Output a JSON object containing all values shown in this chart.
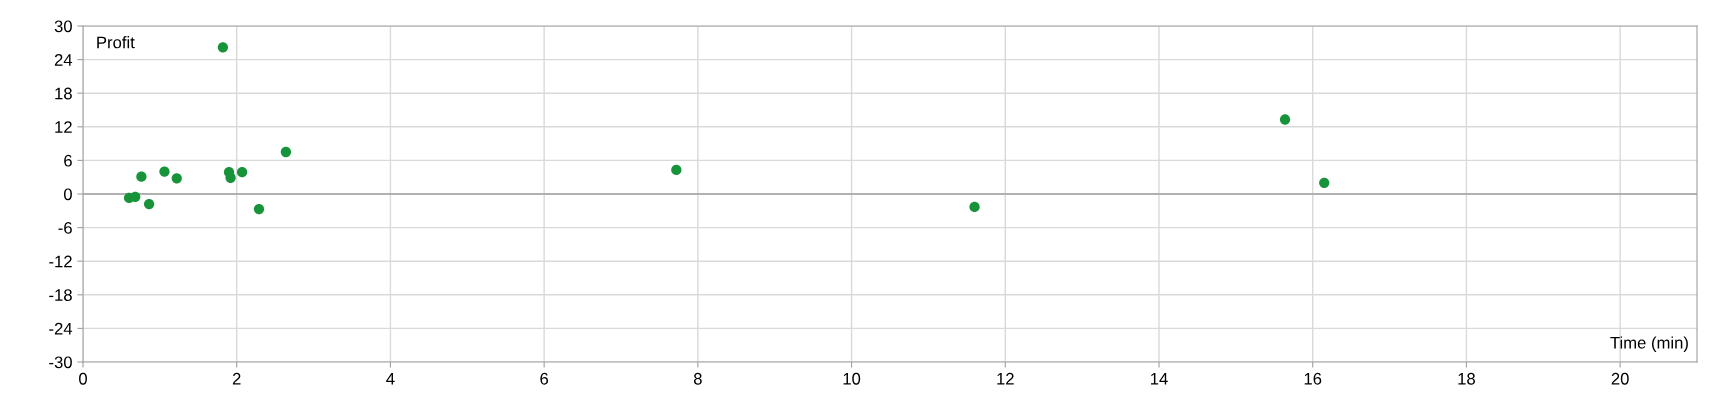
{
  "chart_data": {
    "type": "scatter",
    "xlabel": "Time (min)",
    "ylabel": "Profit",
    "x": [
      0.6,
      0.68,
      0.76,
      0.86,
      1.06,
      1.22,
      1.82,
      1.9,
      1.92,
      2.07,
      2.29,
      2.64,
      7.72,
      11.6,
      15.64,
      16.15
    ],
    "series": [
      {
        "color": "#17943a",
        "values": [
          -0.7,
          -0.5,
          3.1,
          -1.8,
          4.0,
          2.8,
          26.2,
          3.9,
          2.9,
          3.9,
          -2.7,
          7.5,
          4.3,
          -2.3,
          13.3,
          2.0
        ]
      }
    ],
    "xlim": [
      0,
      21
    ],
    "xticks": [
      0,
      2,
      4,
      6,
      8,
      10,
      12,
      14,
      16,
      18,
      20
    ],
    "ylim": [
      -30,
      30
    ],
    "yticks": [
      -30,
      -24,
      -18,
      -12,
      -6,
      0,
      6,
      12,
      18,
      24,
      30
    ],
    "ref_lines": [
      {
        "axis": "y",
        "value": 0,
        "color": "#a0a0a0"
      }
    ],
    "grid": true,
    "marker": "circle",
    "legend": false
  }
}
